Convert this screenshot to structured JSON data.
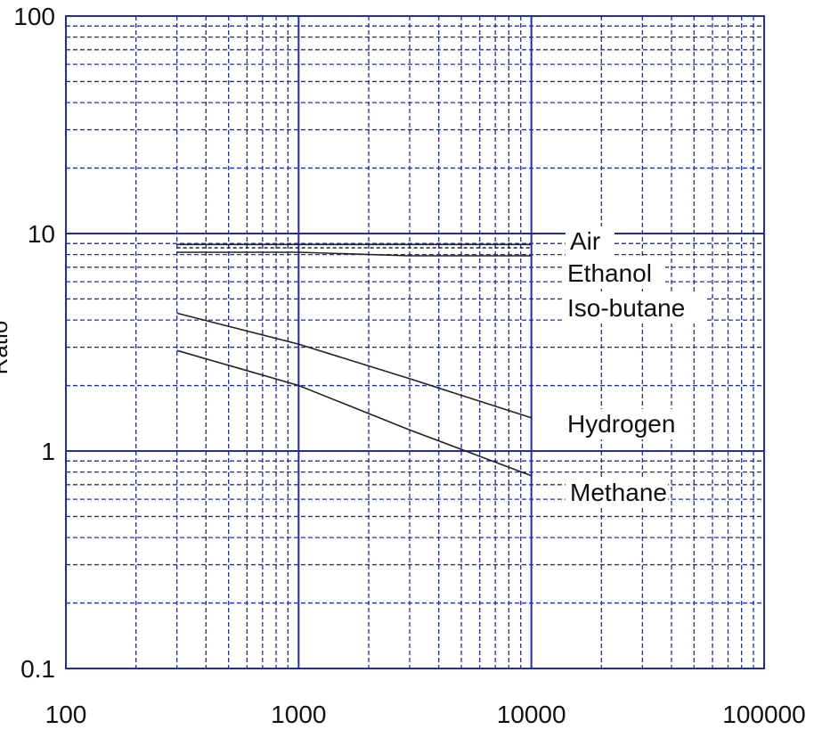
{
  "chart_data": {
    "type": "line",
    "title": "",
    "xlabel": "",
    "ylabel": "Ratio",
    "x_scale": "log",
    "y_scale": "log",
    "xlim": [
      100,
      100000
    ],
    "ylim": [
      0.1,
      100
    ],
    "grid": true,
    "x_ticks": [
      "100",
      "1000",
      "10000",
      "100000"
    ],
    "y_ticks": [
      "0.1",
      "1",
      "10",
      "100"
    ],
    "series": [
      {
        "name": "Air",
        "x": [
          300,
          1000,
          3000,
          10000
        ],
        "y": [
          8.9,
          8.9,
          8.9,
          8.9
        ],
        "style": "solid"
      },
      {
        "name": "Ethanol",
        "x": [
          300,
          1000,
          3000,
          10000
        ],
        "y": [
          8.6,
          8.6,
          8.6,
          8.6
        ],
        "style": "dashed"
      },
      {
        "name": "Iso-butane",
        "x": [
          300,
          1000,
          3000,
          10000
        ],
        "y": [
          8.2,
          8.2,
          7.9,
          7.9
        ],
        "style": "solid"
      },
      {
        "name": "Hydrogen",
        "x": [
          300,
          1000,
          3000,
          10000
        ],
        "y": [
          4.3,
          3.1,
          2.15,
          1.42
        ],
        "style": "solid"
      },
      {
        "name": "Methane",
        "x": [
          300,
          1000,
          3000,
          10000
        ],
        "y": [
          2.9,
          2.0,
          1.25,
          0.77
        ],
        "style": "solid"
      }
    ],
    "colors": {
      "grid": "#1f2bb5",
      "line": "#222222",
      "background": "#ffffff"
    }
  }
}
